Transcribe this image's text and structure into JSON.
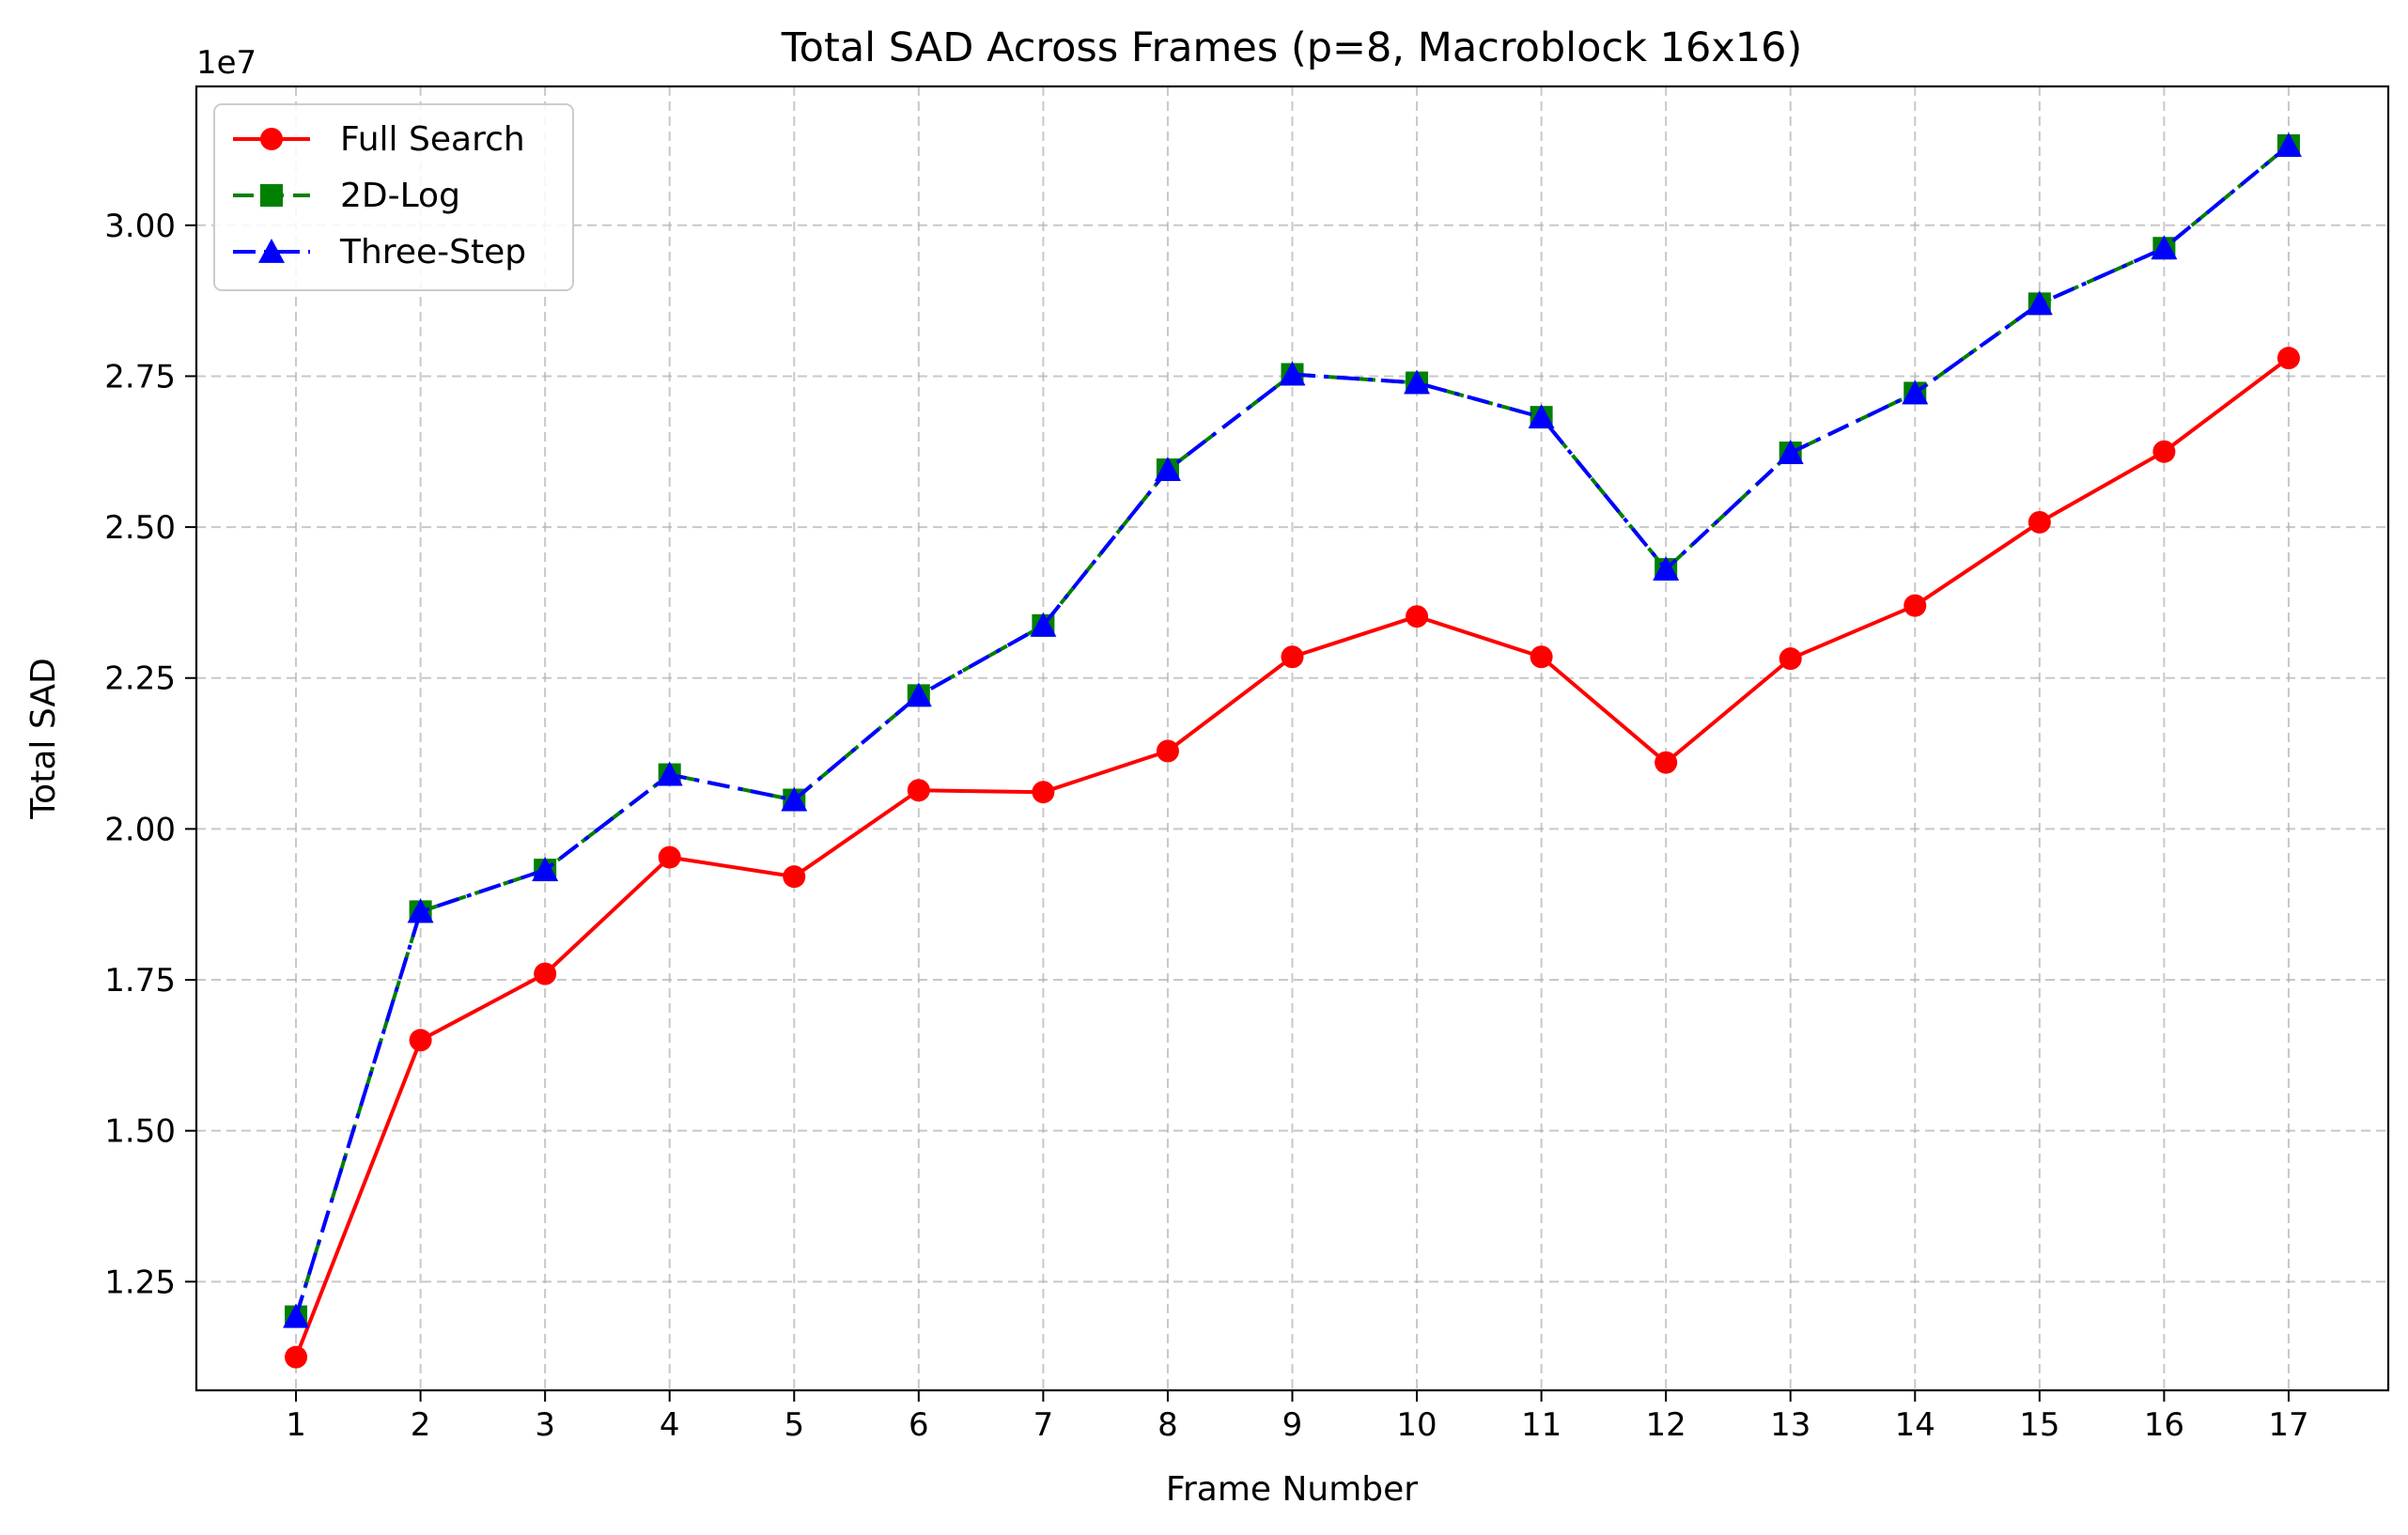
{
  "chart_data": {
    "type": "line",
    "title": "Total SAD Across Frames (p=8, Macroblock 16x16)",
    "xlabel": "Frame Number",
    "ylabel": "Total SAD",
    "offset_text": "1e7",
    "x": [
      1,
      2,
      3,
      4,
      5,
      6,
      7,
      8,
      9,
      10,
      11,
      12,
      13,
      14,
      15,
      16,
      17
    ],
    "xlim": [
      0.2,
      17.8
    ],
    "ylim": [
      10700000,
      32300000
    ],
    "yticks": [
      12500000,
      15000000,
      17500000,
      20000000,
      22500000,
      25000000,
      27500000,
      30000000
    ],
    "ytick_labels": [
      "1.25",
      "1.50",
      "1.75",
      "2.00",
      "2.25",
      "2.50",
      "2.75",
      "3.00"
    ],
    "grid": true,
    "legend_position": "top-left",
    "series": [
      {
        "name": "Full Search",
        "color": "#ff0000",
        "marker": "circle",
        "linestyle": "solid",
        "values": [
          11250000,
          16500000,
          17600000,
          19530000,
          19210000,
          20640000,
          20610000,
          21290000,
          22850000,
          23520000,
          22850000,
          21100000,
          22820000,
          23700000,
          25080000,
          26250000,
          27800000
        ]
      },
      {
        "name": "2D-Log",
        "color": "#008000",
        "marker": "square",
        "linestyle": "dashed",
        "values": [
          11920000,
          18630000,
          19320000,
          20900000,
          20480000,
          22210000,
          23370000,
          25950000,
          27530000,
          27390000,
          26820000,
          24300000,
          26230000,
          27220000,
          28700000,
          29620000,
          31320000
        ]
      },
      {
        "name": "Three-Step",
        "color": "#0000ff",
        "marker": "triangle",
        "linestyle": "dashdot",
        "values": [
          11920000,
          18630000,
          19320000,
          20900000,
          20480000,
          22210000,
          23370000,
          25950000,
          27530000,
          27390000,
          26820000,
          24300000,
          26230000,
          27220000,
          28700000,
          29620000,
          31320000
        ]
      }
    ]
  }
}
